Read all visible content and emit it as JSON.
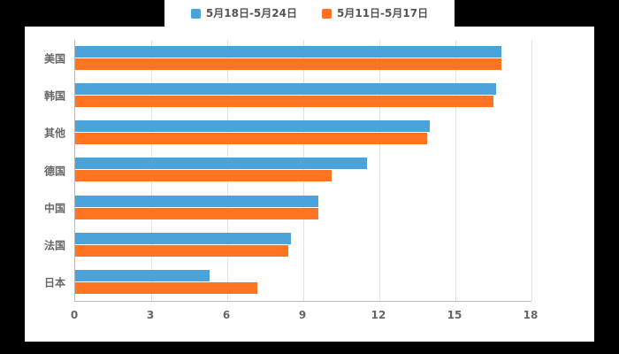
{
  "page": {
    "background_color": "#000000",
    "panel_background_color": "#ffffff"
  },
  "legend": {
    "items": [
      {
        "label": "5月18日-5月24日",
        "color": "#4aa3d9"
      },
      {
        "label": "5月11日-5月17日",
        "color": "#ff7421"
      }
    ]
  },
  "chart_data": {
    "type": "bar",
    "orientation": "horizontal",
    "title": "",
    "xlabel": "",
    "ylabel": "",
    "categories": [
      "美国",
      "韩国",
      "其他",
      "德国",
      "中国",
      "法国",
      "日本"
    ],
    "series": [
      {
        "name": "5月18日-5月24日",
        "color": "#4aa3d9",
        "values": [
          16.8,
          16.6,
          14.0,
          11.5,
          9.6,
          8.5,
          5.3
        ]
      },
      {
        "name": "5月11日-5月17日",
        "color": "#ff7421",
        "values": [
          16.8,
          16.5,
          13.9,
          10.1,
          9.6,
          8.4,
          7.2
        ]
      }
    ],
    "xlim": [
      0,
      18
    ],
    "xticks": [
      0,
      3,
      6,
      9,
      12,
      15,
      18
    ],
    "grid": true,
    "legend_position": "top",
    "tick_label_color": "#666666",
    "gridline_color": "#e2e2e2",
    "axis_line_color": "#b9b9b9"
  }
}
